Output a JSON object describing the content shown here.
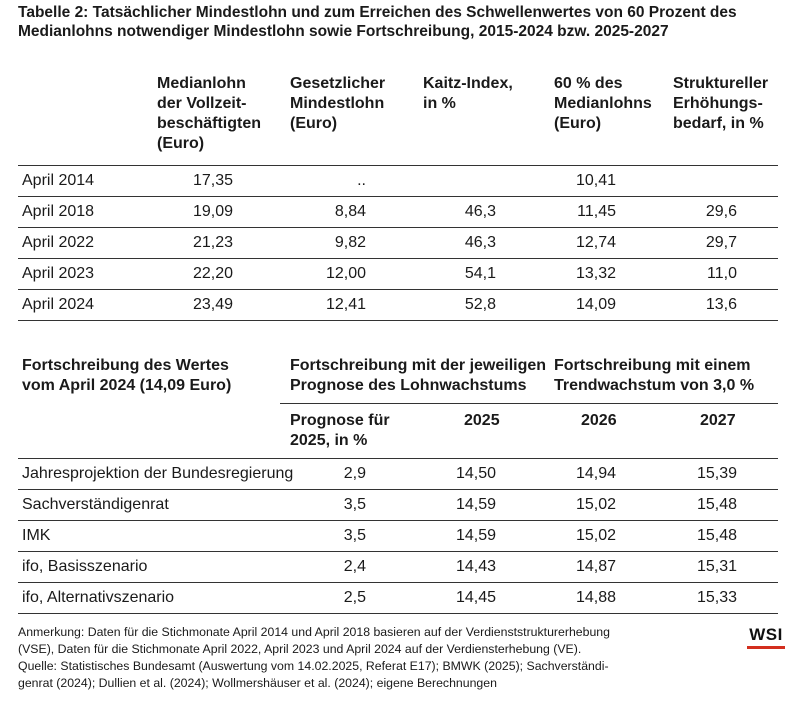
{
  "title": "Tabelle 2: Tatsächlicher Mindestlohn und zum Erreichen des Schwellenwertes von 60 Prozent des Medianlohns notwendiger Mindestlohn sowie Fortschreibung, 2015-2024 bzw. 2025-2027",
  "table1": {
    "headers": [
      "Medianlohn\nder Vollzeit-\nbeschäftigten\n(Euro)",
      "Gesetzlicher\nMindestlohn\n(Euro)",
      "Kaitz-Index,\nin %",
      "60 % des\nMedianlohns\n(Euro)",
      "Struktureller\nErhöhungs-\nbedarf, in %"
    ],
    "rows": [
      {
        "label": "April 2014",
        "median": "17,35",
        "mindestlohn": "..",
        "kaitz": "",
        "sixty": "10,41",
        "bedarf": ""
      },
      {
        "label": "April 2018",
        "median": "19,09",
        "mindestlohn": "8,84",
        "kaitz": "46,3",
        "sixty": "11,45",
        "bedarf": "29,6"
      },
      {
        "label": "April 2022",
        "median": "21,23",
        "mindestlohn": "9,82",
        "kaitz": "46,3",
        "sixty": "12,74",
        "bedarf": "29,7"
      },
      {
        "label": "April 2023",
        "median": "22,20",
        "mindestlohn": "12,00",
        "kaitz": "54,1",
        "sixty": "13,32",
        "bedarf": "11,0"
      },
      {
        "label": "April 2024",
        "median": "23,49",
        "mindestlohn": "12,41",
        "kaitz": "52,8",
        "sixty": "14,09",
        "bedarf": "13,6"
      }
    ]
  },
  "table2": {
    "header_left": "Fortschreibung des Wertes\nvom April 2024 (14,09 Euro)",
    "header_mid": "Fortschreibung mit der jeweiligen\nPrognose des Lohnwachstums",
    "header_right": "Fortschreibung mit einem\nTrendwachstum von 3,0 %",
    "sub_prognose": "Prognose für\n2025, in %",
    "sub_2025": "2025",
    "sub_2026": "2026",
    "sub_2027": "2027",
    "rows": [
      {
        "label": "Jahresprojektion der Bundesregierung",
        "prognose": "2,9",
        "y2025": "14,50",
        "y2026": "14,94",
        "y2027": "15,39"
      },
      {
        "label": "Sachverständigenrat",
        "prognose": "3,5",
        "y2025": "14,59",
        "y2026": "15,02",
        "y2027": "15,48"
      },
      {
        "label": "IMK",
        "prognose": "3,5",
        "y2025": "14,59",
        "y2026": "15,02",
        "y2027": "15,48"
      },
      {
        "label": "ifo, Basisszenario",
        "prognose": "2,4",
        "y2025": "14,43",
        "y2026": "14,87",
        "y2027": "15,31"
      },
      {
        "label": "ifo, Alternativszenario",
        "prognose": "2,5",
        "y2025": "14,45",
        "y2026": "14,88",
        "y2027": "15,33"
      }
    ]
  },
  "note": "Anmerkung: Daten für die Stichmonate April 2014 und April 2018 basieren auf der Verdienststrukturerhebung\n(VSE), Daten für die Stichmonate April 2022, April 2023 und April 2024 auf der Verdiensterhebung (VE).\nQuelle: Statistisches Bundesamt (Auswertung vom 14.02.2025, Referat E17); BMWK (2025); Sachverständi-\ngenrat (2024); Dullien et al. (2024); Wollmershäuser et al. (2024); eigene Berechnungen",
  "logo": "WSI",
  "colors": {
    "logo_underline": "#d32f1e",
    "rules": "#333333"
  }
}
